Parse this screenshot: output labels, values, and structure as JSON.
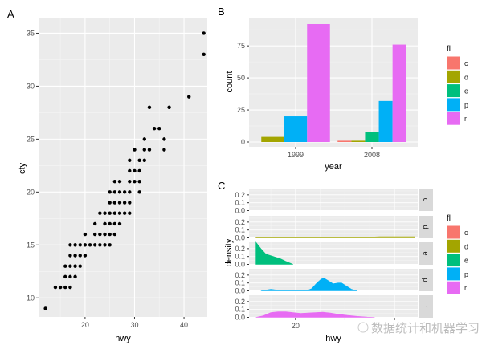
{
  "chart_data": [
    {
      "panel": "A",
      "type": "scatter",
      "xlabel": "hwy",
      "ylabel": "cty",
      "xlim": [
        10.6,
        44.7
      ],
      "ylim": [
        8.2,
        36.4
      ],
      "xticks": [
        20,
        30,
        40
      ],
      "yticks": [
        10,
        15,
        20,
        25,
        30,
        35
      ],
      "grid": true,
      "points": [
        [
          12,
          9
        ],
        [
          14,
          11
        ],
        [
          15,
          11
        ],
        [
          16,
          11
        ],
        [
          17,
          11
        ],
        [
          16,
          12
        ],
        [
          17,
          12
        ],
        [
          18,
          12
        ],
        [
          16,
          13
        ],
        [
          17,
          13
        ],
        [
          18,
          13
        ],
        [
          19,
          13
        ],
        [
          17,
          14
        ],
        [
          18,
          14
        ],
        [
          19,
          14
        ],
        [
          20,
          14
        ],
        [
          17,
          15
        ],
        [
          18,
          15
        ],
        [
          19,
          15
        ],
        [
          20,
          15
        ],
        [
          21,
          15
        ],
        [
          22,
          15
        ],
        [
          23,
          15
        ],
        [
          24,
          15
        ],
        [
          25,
          15
        ],
        [
          20,
          16
        ],
        [
          22,
          16
        ],
        [
          23,
          16
        ],
        [
          24,
          16
        ],
        [
          25,
          16
        ],
        [
          26,
          16
        ],
        [
          22,
          17
        ],
        [
          24,
          17
        ],
        [
          25,
          17
        ],
        [
          26,
          17
        ],
        [
          27,
          17
        ],
        [
          23,
          18
        ],
        [
          24,
          18
        ],
        [
          25,
          18
        ],
        [
          26,
          18
        ],
        [
          27,
          18
        ],
        [
          28,
          18
        ],
        [
          29,
          18
        ],
        [
          25,
          19
        ],
        [
          26,
          19
        ],
        [
          27,
          19
        ],
        [
          28,
          19
        ],
        [
          29,
          19
        ],
        [
          25,
          20
        ],
        [
          26,
          20
        ],
        [
          27,
          20
        ],
        [
          28,
          20
        ],
        [
          29,
          20
        ],
        [
          31,
          20
        ],
        [
          26,
          21
        ],
        [
          27,
          21
        ],
        [
          29,
          21
        ],
        [
          30,
          21
        ],
        [
          31,
          21
        ],
        [
          29,
          22
        ],
        [
          30,
          22
        ],
        [
          31,
          22
        ],
        [
          29,
          23
        ],
        [
          31,
          23
        ],
        [
          32,
          23
        ],
        [
          30,
          24
        ],
        [
          32,
          24
        ],
        [
          33,
          24
        ],
        [
          36,
          24
        ],
        [
          32,
          25
        ],
        [
          36,
          25
        ],
        [
          34,
          26
        ],
        [
          35,
          26
        ],
        [
          33,
          28
        ],
        [
          37,
          28
        ],
        [
          41,
          29
        ],
        [
          44,
          33
        ],
        [
          44,
          35
        ]
      ]
    },
    {
      "panel": "B",
      "type": "bar",
      "xlabel": "year",
      "ylabel": "count",
      "categories": [
        "1999",
        "2008"
      ],
      "yticks": [
        0,
        25,
        50,
        75
      ],
      "ylim": [
        0,
        97
      ],
      "grid": true,
      "position": "dodge",
      "series": [
        {
          "name": "c",
          "values": [
            null,
            1
          ]
        },
        {
          "name": "d",
          "values": [
            4,
            1
          ]
        },
        {
          "name": "e",
          "values": [
            null,
            8
          ]
        },
        {
          "name": "p",
          "values": [
            20,
            32
          ]
        },
        {
          "name": "r",
          "values": [
            92,
            76
          ]
        }
      ],
      "legend": {
        "title": "fl",
        "placement": "right"
      }
    },
    {
      "panel": "C",
      "type": "area",
      "xlabel": "hwy",
      "ylabel": "density",
      "xlim": [
        10.6,
        44.7
      ],
      "ylim": [
        -0.005,
        0.28
      ],
      "xticks": [
        20,
        30,
        40
      ],
      "xtick_labels_visible": [
        "20"
      ],
      "yticks": [
        0.0,
        0.1,
        0.2
      ],
      "ytick_labels": [
        "0.0",
        "0.1",
        "0.2"
      ],
      "grid": true,
      "facets": [
        {
          "name": "c",
          "points": []
        },
        {
          "name": "d",
          "points": [
            [
              12,
              0
            ],
            [
              12,
              0.008
            ],
            [
              20,
              0.009
            ],
            [
              30,
              0.009
            ],
            [
              35,
              0.01
            ],
            [
              37,
              0.014
            ],
            [
              44,
              0.014
            ],
            [
              44,
              0
            ]
          ]
        },
        {
          "name": "e",
          "points": [
            [
              12,
              0
            ],
            [
              12,
              0.28
            ],
            [
              13,
              0.2
            ],
            [
              14,
              0.13
            ],
            [
              15.5,
              0.1
            ],
            [
              17,
              0.07
            ],
            [
              18,
              0.04
            ],
            [
              19.5,
              0
            ]
          ]
        },
        {
          "name": "p",
          "points": [
            [
              13,
              0
            ],
            [
              14,
              0.01
            ],
            [
              15,
              0.02
            ],
            [
              16,
              0.012
            ],
            [
              17,
              0.004
            ],
            [
              18.5,
              0.01
            ],
            [
              20,
              0.004
            ],
            [
              21,
              0.01
            ],
            [
              22.3,
              0.004
            ],
            [
              23.3,
              0.03
            ],
            [
              24.3,
              0.1
            ],
            [
              25.2,
              0.15
            ],
            [
              25.8,
              0.16
            ],
            [
              26.6,
              0.13
            ],
            [
              27.6,
              0.09
            ],
            [
              28.6,
              0.1
            ],
            [
              29.3,
              0.1
            ],
            [
              30.3,
              0.06
            ],
            [
              31.3,
              0.02
            ],
            [
              32.5,
              0
            ]
          ]
        },
        {
          "name": "r",
          "points": [
            [
              12,
              0
            ],
            [
              13.5,
              0.02
            ],
            [
              15,
              0.06
            ],
            [
              16.5,
              0.07
            ],
            [
              18,
              0.07
            ],
            [
              19.5,
              0.06
            ],
            [
              21,
              0.05
            ],
            [
              22.5,
              0.055
            ],
            [
              24,
              0.06
            ],
            [
              25.5,
              0.065
            ],
            [
              27,
              0.055
            ],
            [
              28.5,
              0.04
            ],
            [
              30.5,
              0.025
            ],
            [
              32.5,
              0.012
            ],
            [
              34.5,
              0.003
            ],
            [
              36,
              0
            ]
          ]
        }
      ],
      "legend": {
        "title": "fl",
        "placement": "right"
      }
    }
  ],
  "panel_labels": [
    "A",
    "B",
    "C"
  ],
  "legend_entries": [
    {
      "label": "c",
      "color": "#F8766D"
    },
    {
      "label": "d",
      "color": "#A3A500"
    },
    {
      "label": "e",
      "color": "#00BF7D"
    },
    {
      "label": "p",
      "color": "#00B0F6"
    },
    {
      "label": "r",
      "color": "#E76BF3"
    }
  ],
  "watermark": "数据统计和机器学习"
}
